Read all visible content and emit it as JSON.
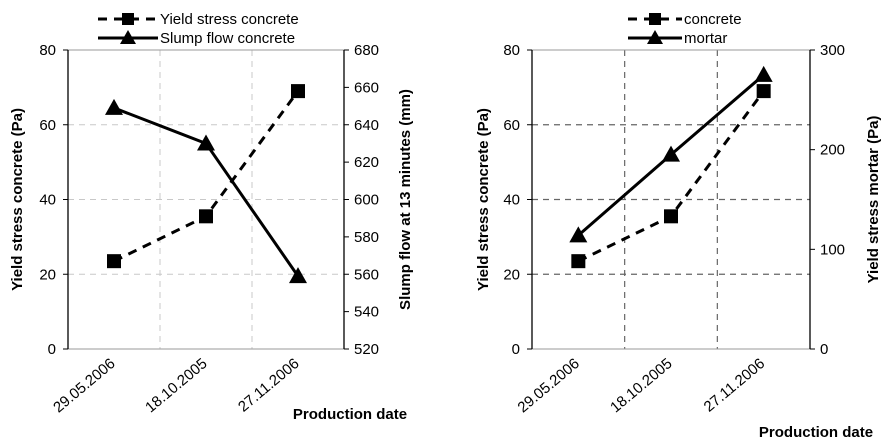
{
  "chart_data": [
    {
      "type": "line",
      "categories": [
        "29.05.2006",
        "18.10.2005",
        "27.11.2006"
      ],
      "xlabel": "Production date",
      "ylabel": "Yield stress concrete (Pa)",
      "y2label": "Slump flow at 13 minutes (mm)",
      "ylim": [
        0,
        80
      ],
      "y2lim": [
        520,
        680
      ],
      "yticks": [
        "0",
        "20",
        "40",
        "60",
        "80"
      ],
      "y2ticks": [
        "520",
        "540",
        "560",
        "580",
        "600",
        "620",
        "640",
        "660",
        "680"
      ],
      "grid": "light gray dashed vertical and horizontal lines",
      "legend_position": "top",
      "series": [
        {
          "name": "Yield stress concrete",
          "axis": "left",
          "values": [
            23.5,
            35.5,
            69
          ],
          "marker": "square",
          "line_style": "dashed",
          "color": "#000000"
        },
        {
          "name": "Slump flow concrete",
          "axis": "right",
          "values": [
            649,
            630,
            559
          ],
          "marker": "triangle",
          "line_style": "solid",
          "color": "#000000"
        }
      ]
    },
    {
      "type": "line",
      "categories": [
        "29.05.2006",
        "18.10.2005",
        "27.11.2006"
      ],
      "xlabel": "Production date",
      "ylabel": "Yield stress concrete (Pa)",
      "y2label": "Yield stress mortar (Pa)",
      "ylim": [
        0,
        80
      ],
      "y2lim": [
        0,
        300
      ],
      "yticks": [
        "0",
        "20",
        "40",
        "60",
        "80"
      ],
      "y2ticks": [
        "0",
        "100",
        "200",
        "300"
      ],
      "grid": "dark gray dashed vertical and horizontal lines",
      "legend_position": "top",
      "series": [
        {
          "name": "concrete",
          "axis": "left",
          "values": [
            23.5,
            35.5,
            69
          ],
          "marker": "square",
          "line_style": "dashed",
          "color": "#000000"
        },
        {
          "name": "mortar",
          "axis": "right",
          "values": [
            114,
            195,
            275
          ],
          "marker": "triangle",
          "line_style": "solid",
          "color": "#000000"
        }
      ]
    }
  ]
}
